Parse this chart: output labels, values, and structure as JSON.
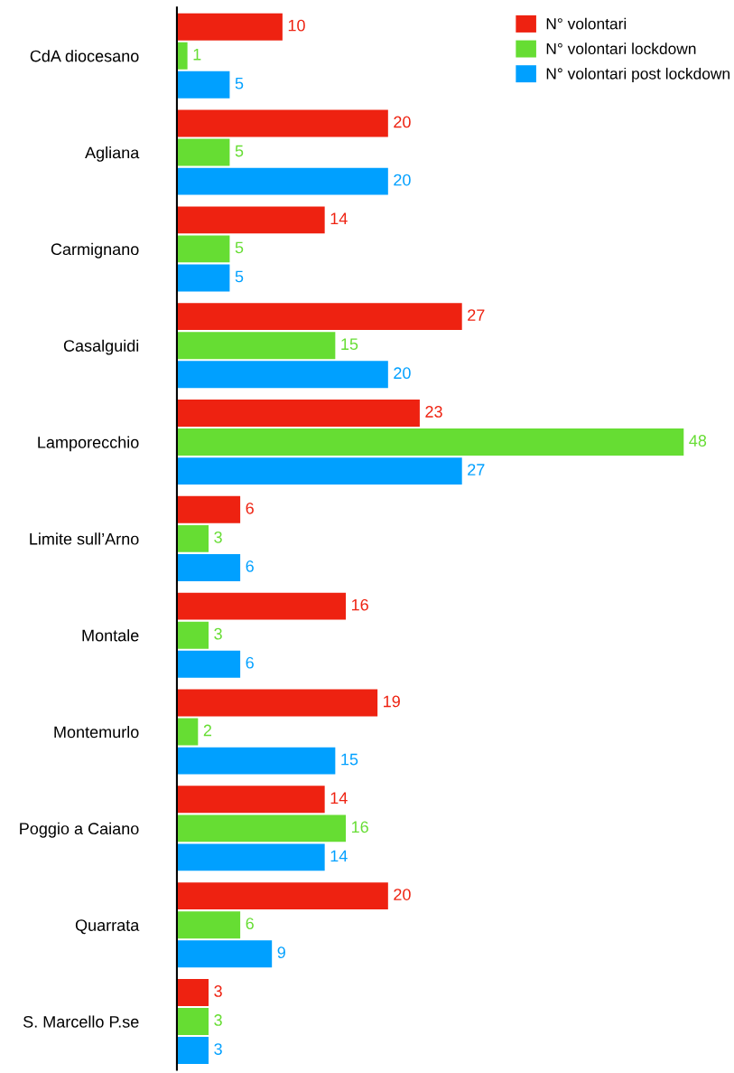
{
  "chart_data": {
    "type": "bar",
    "orientation": "horizontal",
    "data_labels": true,
    "legend": "top right",
    "grid": false,
    "categories": [
      "CdA diocesano",
      "Agliana",
      "Carmignano",
      "Casalguidi",
      "Lamporecchio",
      "Limite sull’Arno",
      "Montale",
      "Montemurlo",
      "Poggio a Caiano",
      "Quarrata",
      "S. Marcello P.se"
    ],
    "series": [
      {
        "name": "N° volontari",
        "color": "#ee2211",
        "values": [
          10,
          20,
          14,
          27,
          23,
          6,
          16,
          19,
          14,
          20,
          3
        ]
      },
      {
        "name": "N° volontari lockdown",
        "color": "#66dd33",
        "values": [
          1,
          5,
          5,
          15,
          48,
          3,
          3,
          2,
          16,
          6,
          3
        ]
      },
      {
        "name": "N° volontari post lockdown",
        "color": "#00a0ff",
        "values": [
          5,
          20,
          5,
          20,
          27,
          6,
          6,
          15,
          14,
          9,
          3
        ]
      }
    ]
  }
}
